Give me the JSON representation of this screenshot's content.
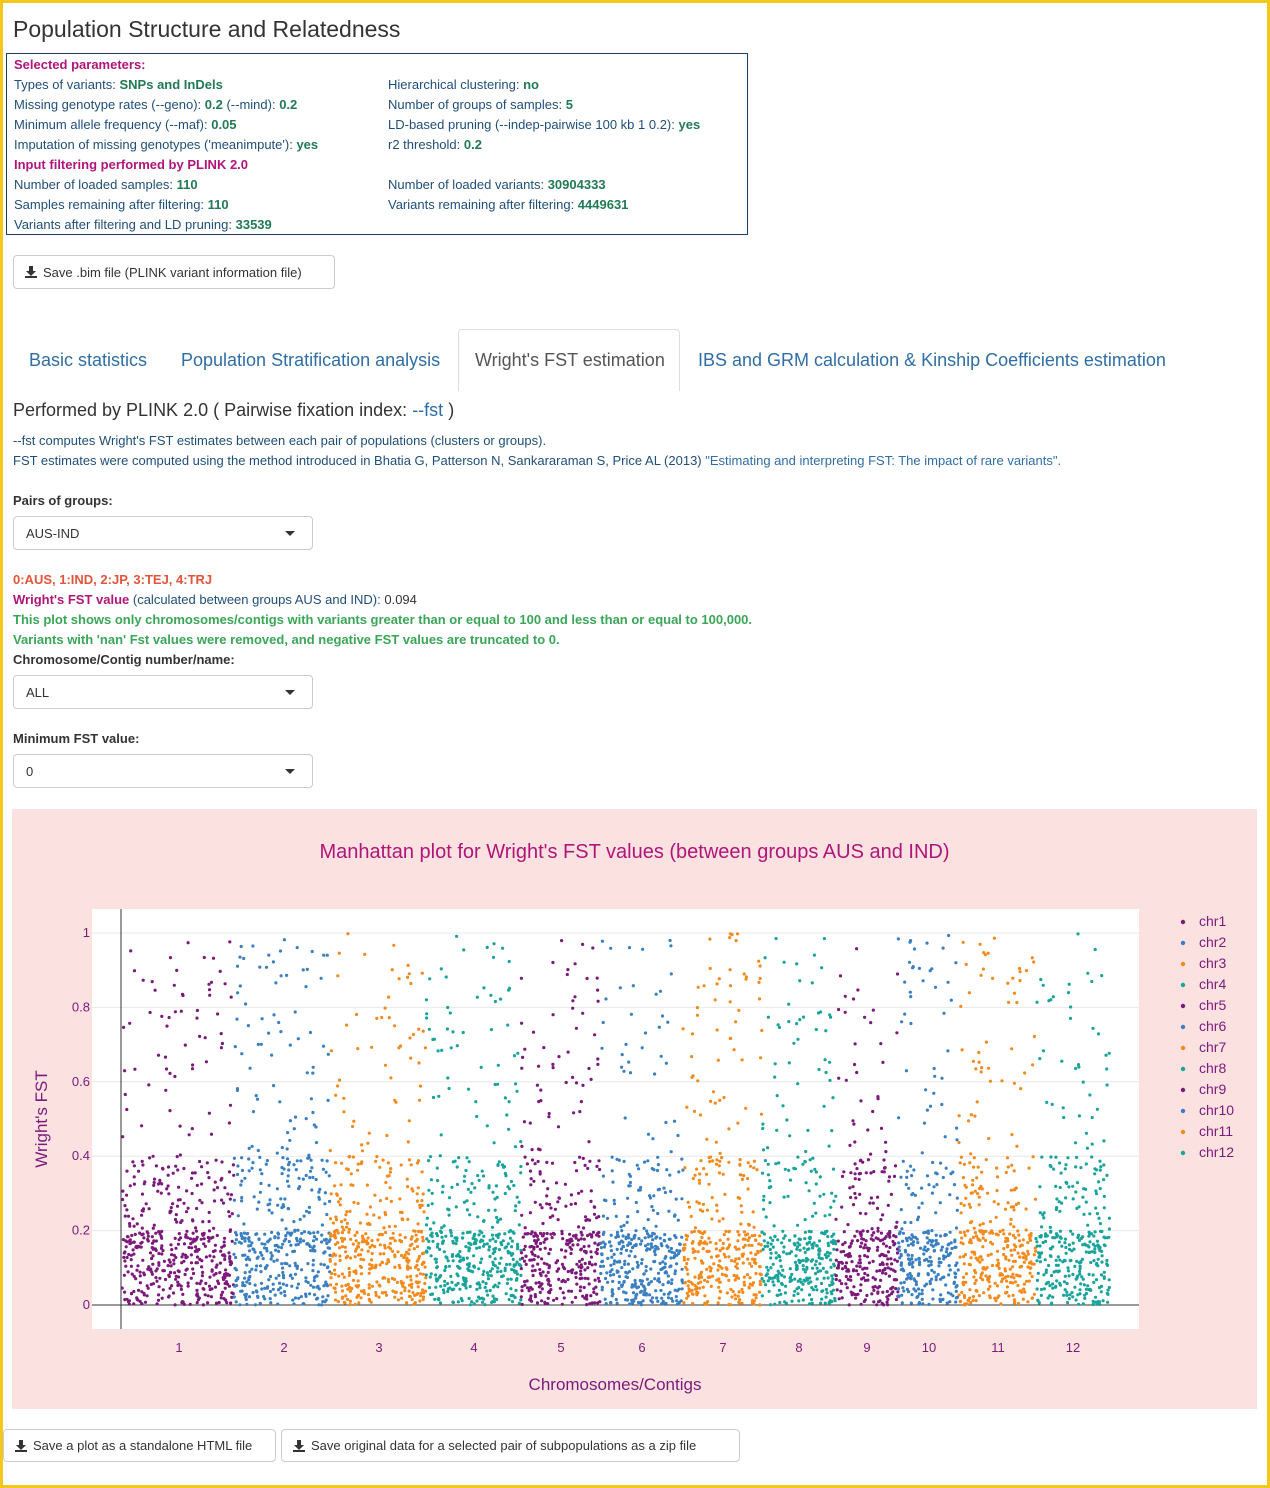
{
  "page": {
    "title": "Population Structure and Relatedness"
  },
  "params": {
    "header": "Selected parameters:",
    "left": [
      {
        "label": "Types of variants: ",
        "value": "SNPs and InDels"
      },
      {
        "label": "Missing genotype rates (--geno): ",
        "value": "0.2",
        "label2": " (--mind): ",
        "value2": "0.2"
      },
      {
        "label": "Minimum allele frequency (--maf): ",
        "value": "0.05"
      },
      {
        "label": "Imputation of missing genotypes ('meanimpute'): ",
        "value": "yes"
      }
    ],
    "right": [
      {
        "label": "Hierarchical clustering: ",
        "value": "no"
      },
      {
        "label": "Number of groups of samples: ",
        "value": "5"
      },
      {
        "label": "LD-based pruning (--indep-pairwise 100 kb 1 0.2): ",
        "value": "yes"
      },
      {
        "label": "r2 threshold: ",
        "value": "0.2"
      }
    ],
    "filter_header": "Input filtering performed by PLINK 2.0",
    "filter_left": [
      {
        "label": "Number of loaded samples: ",
        "value": "110"
      },
      {
        "label": "Samples remaining after filtering: ",
        "value": "110"
      },
      {
        "label": "Variants after filtering and LD pruning: ",
        "value": "33539"
      }
    ],
    "filter_right": [
      {
        "label": "Number of loaded variants: ",
        "value": "30904333"
      },
      {
        "label": "Variants remaining after filtering: ",
        "value": "4449631"
      }
    ]
  },
  "buttons": {
    "save_bim": "Save .bim file (PLINK variant information file)",
    "save_plot": "Save a plot as a standalone HTML file",
    "save_zip": "Save original data for a selected pair of subpopulations as a zip file"
  },
  "tabs": [
    "Basic statistics",
    "Population Stratification analysis",
    "Wright's FST estimation",
    "IBS and GRM calculation & Kinship Coefficients estimation"
  ],
  "active_tab": "Wright's FST estimation",
  "performed": {
    "prefix": "Performed by PLINK 2.0 ( Pairwise fixation index: ",
    "link": "--fst",
    "suffix": " )"
  },
  "desc": {
    "line1": "--fst computes Wright's FST estimates between each pair of populations (clusters or groups).",
    "line2_prefix": "FST estimates were computed using the method introduced in Bhatia G, Patterson N, Sankararaman S, Price AL (2013) ",
    "line2_link": "\"Estimating and interpreting FST: The impact of rare variants\"."
  },
  "pairs": {
    "label": "Pairs of groups:",
    "value": "AUS-IND"
  },
  "groups_legend": "0:AUS, 1:IND, 2:JP, 3:TEJ, 4:TRJ",
  "fst_value": {
    "label": "Wright's FST value",
    "text": " (calculated between groups AUS and IND): ",
    "value": "0.094"
  },
  "notes": {
    "line1": "This plot shows only chromosomes/contigs with variants greater than or equal to 100 and less than or equal to 100,000.",
    "line2": "Variants with 'nan' Fst values were removed, and negative FST values are truncated to 0."
  },
  "chromosome": {
    "label": "Chromosome/Contig number/name:",
    "value": "ALL"
  },
  "min_fst": {
    "label": "Minimum FST value:",
    "value": "0"
  },
  "chart_data": {
    "type": "scatter",
    "title": "Manhattan plot for Wright's FST values (between groups AUS and IND)",
    "xlabel": "Chromosomes/Contigs",
    "ylabel": "Wright's FST",
    "ylim": [
      0,
      1
    ],
    "yticks": [
      "0",
      "0.2",
      "0.4",
      "0.6",
      "0.8",
      "1"
    ],
    "categories": [
      "1",
      "2",
      "3",
      "4",
      "5",
      "6",
      "7",
      "8",
      "9",
      "10",
      "11",
      "12"
    ],
    "legend_position": "right",
    "grid": true,
    "series": [
      {
        "name": "chr1",
        "color": "#7b1a7b"
      },
      {
        "name": "chr2",
        "color": "#3a7fc0"
      },
      {
        "name": "chr3",
        "color": "#f18b1e"
      },
      {
        "name": "chr4",
        "color": "#1aa39a"
      },
      {
        "name": "chr5",
        "color": "#7b1a7b"
      },
      {
        "name": "chr6",
        "color": "#3a7fc0"
      },
      {
        "name": "chr7",
        "color": "#f18b1e"
      },
      {
        "name": "chr8",
        "color": "#1aa39a"
      },
      {
        "name": "chr9",
        "color": "#7b1a7b"
      },
      {
        "name": "chr10",
        "color": "#3a7fc0"
      },
      {
        "name": "chr11",
        "color": "#f18b1e"
      },
      {
        "name": "chr12",
        "color": "#1aa39a"
      }
    ]
  }
}
